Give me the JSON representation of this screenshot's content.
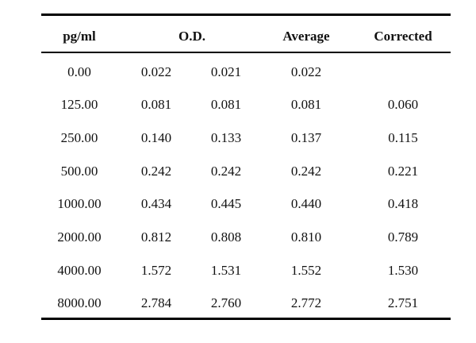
{
  "table": {
    "headers": {
      "concentration": "pg/ml",
      "od": "O.D.",
      "average": "Average",
      "corrected": "Corrected"
    },
    "rows": [
      {
        "concentration": "0.00",
        "od1": "0.022",
        "od2": "0.021",
        "average": "0.022",
        "corrected": ""
      },
      {
        "concentration": "125.00",
        "od1": "0.081",
        "od2": "0.081",
        "average": "0.081",
        "corrected": "0.060"
      },
      {
        "concentration": "250.00",
        "od1": "0.140",
        "od2": "0.133",
        "average": "0.137",
        "corrected": "0.115"
      },
      {
        "concentration": "500.00",
        "od1": "0.242",
        "od2": "0.242",
        "average": "0.242",
        "corrected": "0.221"
      },
      {
        "concentration": "1000.00",
        "od1": "0.434",
        "od2": "0.445",
        "average": "0.440",
        "corrected": "0.418"
      },
      {
        "concentration": "2000.00",
        "od1": "0.812",
        "od2": "0.808",
        "average": "0.810",
        "corrected": "0.789"
      },
      {
        "concentration": "4000.00",
        "od1": "1.572",
        "od2": "1.531",
        "average": "1.552",
        "corrected": "1.530"
      },
      {
        "concentration": "8000.00",
        "od1": "2.784",
        "od2": "2.760",
        "average": "2.772",
        "corrected": "2.751"
      }
    ]
  }
}
